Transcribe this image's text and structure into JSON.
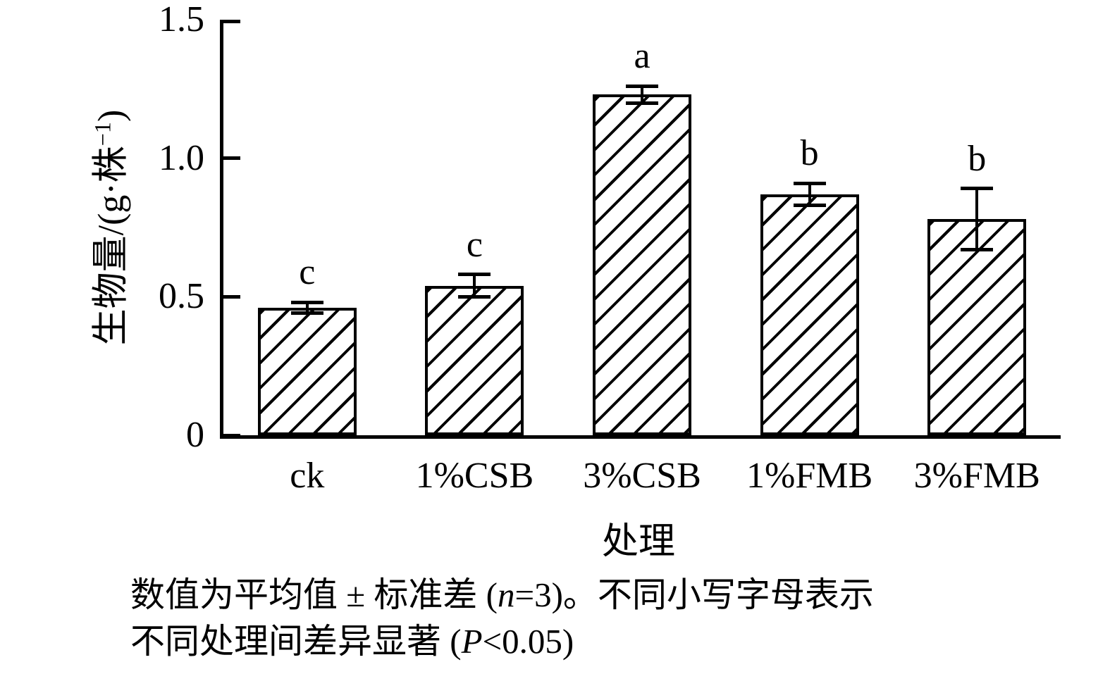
{
  "chart_data": {
    "type": "bar",
    "title": "",
    "xlabel": "处理",
    "ylabel_parts": {
      "main": "生物量/(g·株",
      "sup": "−1",
      "close": ")"
    },
    "categories": [
      "ck",
      "1%CSB",
      "3%CSB",
      "1%FMB",
      "3%FMB"
    ],
    "values": [
      0.46,
      0.54,
      1.23,
      0.87,
      0.78
    ],
    "errors": [
      0.02,
      0.04,
      0.03,
      0.04,
      0.11
    ],
    "sig_letters": [
      "c",
      "c",
      "a",
      "b",
      "b"
    ],
    "ylim": [
      0,
      1.5
    ],
    "yticks": [
      0,
      0.5,
      1.0,
      1.5
    ],
    "ytick_labels": [
      "0",
      "0.5",
      "1.0",
      "1.5"
    ],
    "grid": false,
    "legend": "none",
    "hatch": "diagonal",
    "bar_color": "#ffffff",
    "line_color": "#000000"
  },
  "caption": {
    "line1_pre": "数值为平均值 ± 标准差 (",
    "line1_italic": "n",
    "line1_post": "=3)。不同小写字母表示",
    "line2_pre": "不同处理间差异显著 (",
    "line2_italic": "P",
    "line2_post": "<0.05)"
  }
}
